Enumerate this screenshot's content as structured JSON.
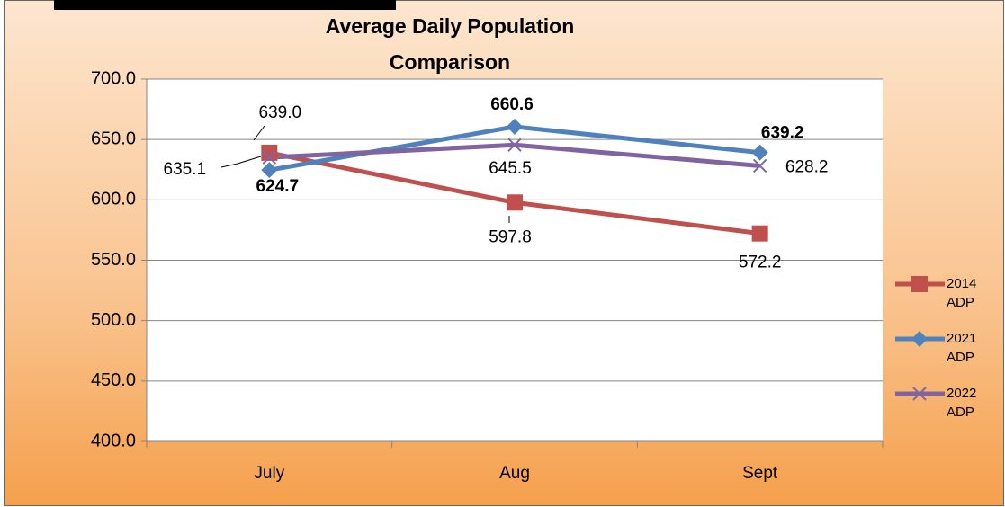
{
  "chart_data": {
    "type": "line",
    "title": [
      "Average Daily Population",
      "Comparison"
    ],
    "categories": [
      "July",
      "Aug",
      "Sept"
    ],
    "series": [
      {
        "name": "2014 ADP",
        "color": "#c0504d",
        "marker": "square",
        "values": [
          639.0,
          597.8,
          572.2
        ],
        "value_labels": [
          "639.0",
          "597.8",
          "572.2"
        ],
        "label_bold": false
      },
      {
        "name": "2021 ADP",
        "color": "#4f81bd",
        "marker": "diamond",
        "values": [
          624.7,
          660.6,
          639.2
        ],
        "value_labels": [
          "624.7",
          "660.6",
          "639.2"
        ],
        "label_bold": true
      },
      {
        "name": "2022 ADP",
        "color": "#8064a2",
        "marker": "x",
        "values": [
          635.1,
          645.5,
          628.2
        ],
        "value_labels": [
          "635.1",
          "645.5",
          "628.2"
        ],
        "label_bold": false
      }
    ],
    "ylim": [
      400,
      700
    ],
    "yticks": [
      {
        "value": 400,
        "label": "400.0"
      },
      {
        "value": 450,
        "label": "450.0"
      },
      {
        "value": 500,
        "label": "500.0"
      },
      {
        "value": 550,
        "label": "550.0"
      },
      {
        "value": 600,
        "label": "600.0"
      },
      {
        "value": 650,
        "label": "650.0"
      },
      {
        "value": 700,
        "label": "700.0"
      }
    ],
    "grid": true,
    "legend": "right"
  }
}
